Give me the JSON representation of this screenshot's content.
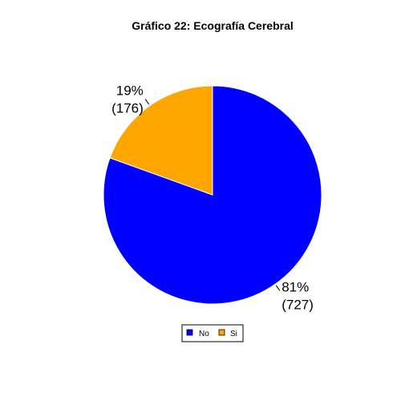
{
  "chart_data": {
    "type": "pie",
    "title": "Gráfico 22: Ecografía Cerebral",
    "slices": [
      {
        "name": "No",
        "count": 727,
        "percent_label": "81%",
        "count_label": "(727)",
        "color": "#0000FF"
      },
      {
        "name": "Si",
        "count": 176,
        "percent_label": "19%",
        "count_label": "(176)",
        "color": "#FFA500"
      }
    ],
    "legend": {
      "position": "bottom",
      "entries": [
        "No",
        "Si"
      ]
    }
  }
}
